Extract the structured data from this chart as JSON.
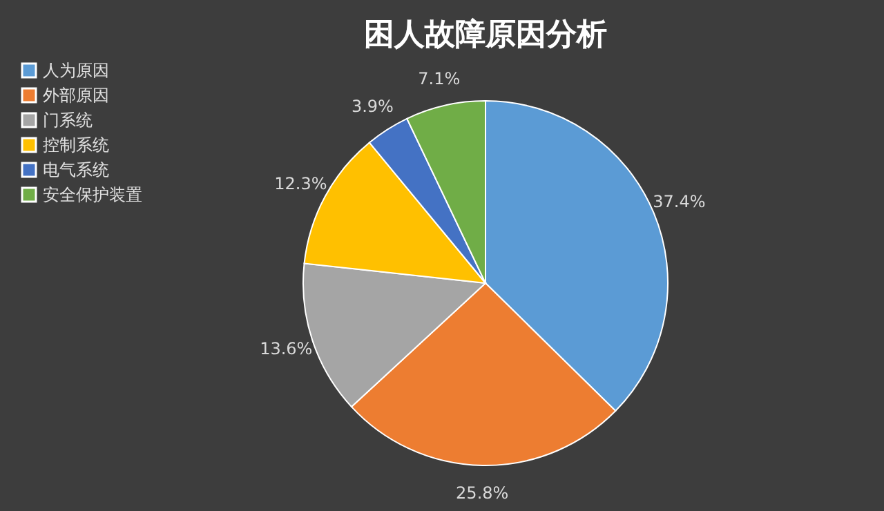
{
  "chart_data": {
    "type": "pie",
    "title": "困人故障原因分析",
    "categories": [
      "人为原因",
      "外部原因",
      "门系统",
      "控制系统",
      "电气系统",
      "安全保护装置"
    ],
    "values": [
      37.4,
      25.8,
      13.6,
      12.3,
      3.9,
      7.1
    ],
    "value_labels": [
      "37.4%",
      "25.8%",
      "13.6%",
      "12.3%",
      "3.9%",
      "7.1%"
    ],
    "colors": [
      "#5b9bd5",
      "#ed7d31",
      "#a5a5a5",
      "#ffc000",
      "#4472c4",
      "#70ad47"
    ],
    "legend": "left"
  }
}
